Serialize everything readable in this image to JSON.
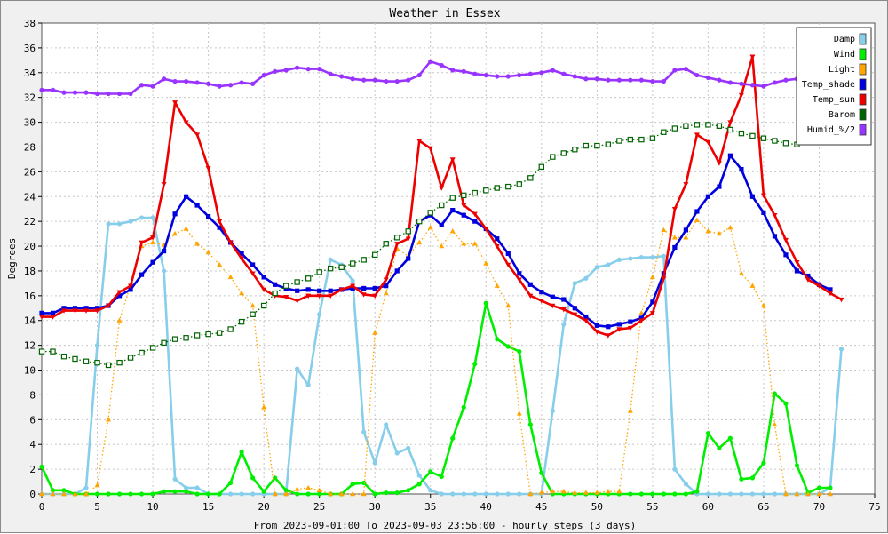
{
  "chart_data": {
    "type": "line",
    "title": "Weather in Essex",
    "xlabel": "From 2023-09-01:00 To 2023-09-03 23:56:00 - hourly steps (3 days)",
    "ylabel": "Degrees",
    "xlim": [
      0,
      75
    ],
    "ylim": [
      0,
      38
    ],
    "x_ticks": [
      0,
      5,
      10,
      15,
      20,
      25,
      30,
      35,
      40,
      45,
      50,
      55,
      60,
      65,
      70,
      75
    ],
    "y_ticks": [
      0,
      2,
      4,
      6,
      8,
      10,
      12,
      14,
      16,
      18,
      20,
      22,
      24,
      26,
      28,
      30,
      32,
      34,
      36,
      38
    ],
    "grid": true,
    "legend_position": "top-right",
    "series": [
      {
        "name": "Damp",
        "color": "#87ceeb",
        "line_style": "solid",
        "marker": "circle",
        "values": [
          0,
          0,
          0,
          0,
          0.5,
          12,
          21.8,
          21.8,
          22,
          22.3,
          22.3,
          18,
          1.2,
          0.5,
          0.5,
          0,
          0,
          0,
          0,
          0,
          0,
          0,
          0,
          10.1,
          8.8,
          14.5,
          18.9,
          18.5,
          17.2,
          5,
          2.5,
          5.6,
          3.3,
          3.7,
          1.5,
          0.3,
          0,
          0,
          0,
          0,
          0,
          0,
          0,
          0,
          0,
          0,
          6.7,
          13.7,
          17,
          17.4,
          18.3,
          18.5,
          18.9,
          19,
          19.1,
          19.1,
          19.2,
          2,
          0.8,
          0,
          0,
          0,
          0,
          0,
          0,
          0,
          0,
          0,
          0,
          0,
          0,
          0.5,
          11.7
        ]
      },
      {
        "name": "Wind",
        "color": "#00ee00",
        "line_style": "solid",
        "marker": "circle",
        "values": [
          2.2,
          0.3,
          0.3,
          0,
          0,
          0,
          0,
          0,
          0,
          0,
          0,
          0.2,
          0.2,
          0.2,
          0,
          0,
          0,
          0.9,
          3.4,
          1.3,
          0.2,
          1.3,
          0.3,
          0,
          0,
          0,
          0,
          0,
          0.8,
          0.9,
          0,
          0.1,
          0.1,
          0.3,
          0.8,
          1.8,
          1.4,
          4.5,
          7,
          10.5,
          15.4,
          12.5,
          11.9,
          11.5,
          5.6,
          1.7,
          0,
          0,
          0,
          0,
          0,
          0,
          0,
          0,
          0,
          0,
          0,
          0,
          0,
          0.2,
          4.9,
          3.7,
          4.5,
          1.2,
          1.3,
          2.5,
          8.1,
          7.3,
          2.3,
          0.1,
          0.5,
          0.5
        ]
      },
      {
        "name": "Light",
        "color": "#ffa500",
        "line_style": "dotted",
        "marker": "triangle-up",
        "values": [
          0,
          0,
          0,
          0,
          0,
          0.7,
          6,
          14,
          16.9,
          20,
          20.3,
          20.1,
          21,
          21.4,
          20.2,
          19.5,
          18.5,
          17.5,
          16.2,
          15.2,
          7,
          0,
          0,
          0.4,
          0.5,
          0.3,
          0,
          0,
          0,
          0,
          13,
          16.2,
          19.8,
          19.2,
          20.3,
          21.5,
          20,
          21.2,
          20.2,
          20.2,
          18.6,
          16.8,
          15.2,
          6.5,
          0,
          0.1,
          0.2,
          0.2,
          0.1,
          0.1,
          0.1,
          0.2,
          0.2,
          6.7,
          14.6,
          17.5,
          21.3,
          20.7,
          20.7,
          22.1,
          21.2,
          21,
          21.5,
          17.8,
          16.8,
          15.2,
          5.6,
          0,
          0,
          0,
          0,
          0
        ]
      },
      {
        "name": "Temp_shade",
        "color": "#0000dd",
        "line_style": "solid",
        "marker": "square",
        "values": [
          14.6,
          14.6,
          15,
          15,
          15,
          15,
          15.2,
          16,
          16.5,
          17.7,
          18.7,
          19.6,
          22.6,
          24,
          23.3,
          22.4,
          21.5,
          20.3,
          19.4,
          18.5,
          17.5,
          16.9,
          16.6,
          16.4,
          16.5,
          16.4,
          16.4,
          16.5,
          16.6,
          16.6,
          16.6,
          16.8,
          18,
          19,
          22,
          22.5,
          21.7,
          22.9,
          22.5,
          22,
          21.4,
          20.6,
          19.4,
          17.8,
          16.9,
          16.3,
          15.9,
          15.7,
          15,
          14.3,
          13.6,
          13.5,
          13.7,
          13.9,
          14.2,
          15.5,
          17.8,
          19.9,
          21.3,
          22.8,
          24,
          24.8,
          27.3,
          26.2,
          24,
          22.7,
          20.8,
          19.3,
          18,
          17.6,
          16.9,
          16.5
        ]
      },
      {
        "name": "Temp_sun",
        "color": "#ee0000",
        "line_style": "solid",
        "marker": "triangle-down",
        "values": [
          14.3,
          14.3,
          14.8,
          14.8,
          14.8,
          14.8,
          15.2,
          16.3,
          16.8,
          20.3,
          20.7,
          25,
          31.6,
          30,
          29,
          26.3,
          22,
          20.3,
          19,
          17.8,
          16.5,
          16,
          15.9,
          15.6,
          16,
          16,
          16,
          16.5,
          16.8,
          16.1,
          16,
          17.3,
          20.2,
          20.6,
          28.5,
          27.9,
          24.7,
          27,
          23.3,
          22.6,
          21.4,
          20,
          18.5,
          17.3,
          16,
          15.6,
          15.2,
          14.9,
          14.5,
          14,
          13.1,
          12.8,
          13.3,
          13.4,
          14,
          14.6,
          17.4,
          23,
          25,
          29,
          28.4,
          26.7,
          30,
          32.2,
          35.3,
          24.1,
          22.5,
          20.5,
          18.7,
          17.3,
          16.8,
          16.2,
          15.7
        ]
      },
      {
        "name": "Barom",
        "color": "#006400",
        "line_style": "dotted",
        "marker": "square-open",
        "values": [
          11.5,
          11.5,
          11.1,
          10.9,
          10.7,
          10.6,
          10.4,
          10.6,
          11,
          11.4,
          11.8,
          12.2,
          12.5,
          12.6,
          12.8,
          12.9,
          13,
          13.3,
          13.9,
          14.5,
          15.2,
          16.2,
          16.8,
          17.1,
          17.4,
          17.9,
          18.2,
          18.3,
          18.6,
          18.9,
          19.3,
          20.2,
          20.7,
          21.2,
          22,
          22.7,
          23.3,
          23.9,
          24.1,
          24.3,
          24.5,
          24.7,
          24.8,
          25,
          25.5,
          26.4,
          27.2,
          27.5,
          27.8,
          28.1,
          28.1,
          28.2,
          28.5,
          28.6,
          28.6,
          28.7,
          29.2,
          29.5,
          29.7,
          29.8,
          29.8,
          29.7,
          29.4,
          29.1,
          28.9,
          28.7,
          28.5,
          28.3,
          28.2,
          28.4,
          28.5
        ]
      },
      {
        "name": "Humid_%/2",
        "color": "#9933ff",
        "line_style": "solid",
        "marker": "circle",
        "values": [
          32.6,
          32.6,
          32.4,
          32.4,
          32.4,
          32.3,
          32.3,
          32.3,
          32.3,
          33,
          32.9,
          33.5,
          33.3,
          33.3,
          33.2,
          33.1,
          32.9,
          33,
          33.2,
          33.1,
          33.8,
          34.1,
          34.2,
          34.4,
          34.3,
          34.3,
          33.9,
          33.7,
          33.5,
          33.4,
          33.4,
          33.3,
          33.3,
          33.4,
          33.8,
          34.9,
          34.6,
          34.2,
          34.1,
          33.9,
          33.8,
          33.7,
          33.7,
          33.8,
          33.9,
          34,
          34.2,
          33.9,
          33.7,
          33.5,
          33.5,
          33.4,
          33.4,
          33.4,
          33.4,
          33.3,
          33.3,
          34.2,
          34.3,
          33.8,
          33.6,
          33.4,
          33.2,
          33.1,
          33,
          32.9,
          33.2,
          33.4,
          33.5,
          33.9,
          33.8,
          33.8
        ]
      }
    ]
  }
}
